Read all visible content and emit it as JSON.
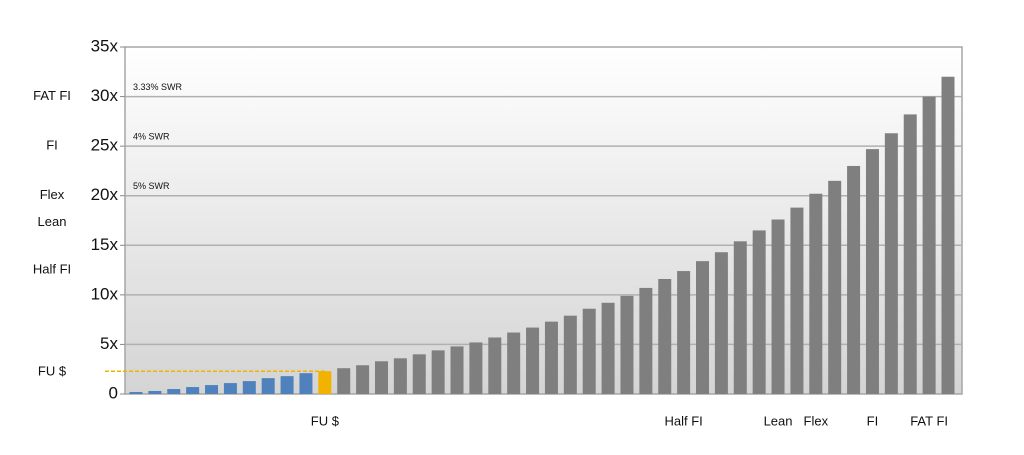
{
  "chart_data": {
    "type": "bar",
    "categories": [
      null,
      null,
      null,
      null,
      null,
      null,
      null,
      null,
      null,
      null,
      "FU $",
      null,
      null,
      null,
      null,
      null,
      null,
      null,
      null,
      null,
      null,
      null,
      null,
      null,
      null,
      null,
      null,
      null,
      null,
      "Half FI",
      null,
      null,
      null,
      null,
      "Lean",
      null,
      "Flex",
      null,
      null,
      "FI",
      null,
      null,
      "FAT FI",
      null
    ],
    "values": [
      0.2,
      0.3,
      0.5,
      0.7,
      0.9,
      1.1,
      1.3,
      1.6,
      1.8,
      2.1,
      2.3,
      2.6,
      2.9,
      3.3,
      3.6,
      4.0,
      4.4,
      4.8,
      5.2,
      5.7,
      6.2,
      6.7,
      7.3,
      7.9,
      8.6,
      9.2,
      9.9,
      10.7,
      11.6,
      12.4,
      13.4,
      14.3,
      15.4,
      16.5,
      17.6,
      18.8,
      20.2,
      21.5,
      23.0,
      24.7,
      26.3,
      28.2,
      30.0,
      32.0
    ],
    "colors": [
      "#4f81bd",
      "#4f81bd",
      "#4f81bd",
      "#4f81bd",
      "#4f81bd",
      "#4f81bd",
      "#4f81bd",
      "#4f81bd",
      "#4f81bd",
      "#4f81bd",
      "#f2b200",
      "#7f7f7f",
      "#7f7f7f",
      "#7f7f7f",
      "#7f7f7f",
      "#7f7f7f",
      "#7f7f7f",
      "#7f7f7f",
      "#7f7f7f",
      "#7f7f7f",
      "#7f7f7f",
      "#7f7f7f",
      "#7f7f7f",
      "#7f7f7f",
      "#7f7f7f",
      "#7f7f7f",
      "#7f7f7f",
      "#7f7f7f",
      "#7f7f7f",
      "#7f7f7f",
      "#7f7f7f",
      "#7f7f7f",
      "#7f7f7f",
      "#7f7f7f",
      "#7f7f7f",
      "#7f7f7f",
      "#7f7f7f",
      "#7f7f7f",
      "#7f7f7f",
      "#7f7f7f",
      "#7f7f7f",
      "#7f7f7f",
      "#7f7f7f",
      "#7f7f7f"
    ],
    "ylim": [
      0,
      35
    ],
    "yticks": [
      0,
      {
        "value": 5,
        "label": "5x"
      },
      {
        "value": 10,
        "label": "10x"
      },
      {
        "value": 15,
        "label": "15x"
      },
      {
        "value": 20,
        "label": "20x"
      },
      {
        "value": 25,
        "label": "25x"
      },
      {
        "value": 30,
        "label": "30x"
      },
      {
        "value": 35,
        "label": "35x"
      }
    ],
    "grid": true,
    "swr_annotations": [
      {
        "text": "3.33% SWR",
        "y": 30
      },
      {
        "text": "4% SWR",
        "y": 25
      },
      {
        "text": "5% SWR",
        "y": 20
      }
    ],
    "left_labels": [
      {
        "text": "FAT FI",
        "y": 30
      },
      {
        "text": "FI",
        "y": 25
      },
      {
        "text": "Flex",
        "y": 20
      },
      {
        "text": "Lean",
        "y": 17.3
      },
      {
        "text": "Half FI",
        "y": 12.5
      },
      {
        "text": "FU $",
        "y": 2.2
      }
    ]
  }
}
